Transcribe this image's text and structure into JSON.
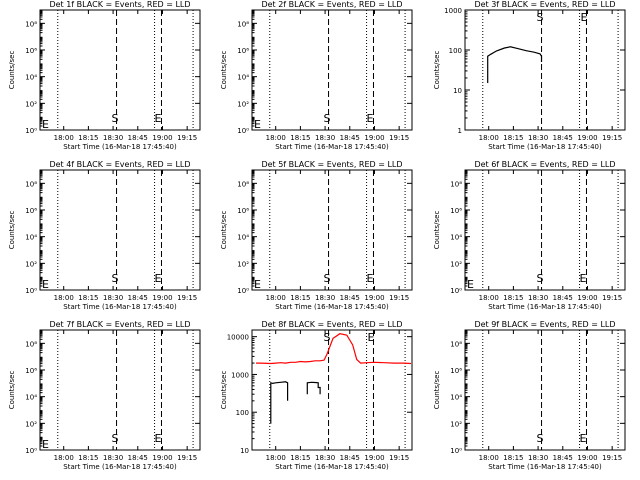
{
  "chart_data": [
    {
      "id": "det1f",
      "type": "line",
      "title": "Det 1f BLACK = Events, RED = LLD",
      "xlabel": "Start Time (16-Mar-18 17:45:40)",
      "ylabel": "Counts/sec",
      "y_scale": "log",
      "ylim": [
        1,
        1000000000.0
      ],
      "y_ticks": [
        {
          "v": 1,
          "label": "10⁰"
        },
        {
          "v": 100,
          "label": "10²"
        },
        {
          "v": 10000.0,
          "label": "10⁴"
        },
        {
          "v": 1000000.0,
          "label": "10⁶"
        },
        {
          "v": 100000000.0,
          "label": "10⁸"
        }
      ],
      "x_ticks": [
        "18:00",
        "18:15",
        "18:30",
        "18:45",
        "19:00",
        "19:15"
      ],
      "markers": [
        {
          "label": "E",
          "pos": "left"
        },
        {
          "label": "S",
          "pos": "mid"
        },
        {
          "label": "E",
          "pos": "right"
        }
      ],
      "series": []
    },
    {
      "id": "det2f",
      "type": "line",
      "title": "Det 2f BLACK = Events, RED = LLD",
      "xlabel": "Start Time (16-Mar-18 17:45:40)",
      "ylabel": "Counts/sec",
      "y_scale": "log",
      "ylim": [
        1,
        1000000000.0
      ],
      "y_ticks": [
        {
          "v": 1,
          "label": "10⁰"
        },
        {
          "v": 100,
          "label": "10²"
        },
        {
          "v": 10000.0,
          "label": "10⁴"
        },
        {
          "v": 1000000.0,
          "label": "10⁶"
        },
        {
          "v": 100000000.0,
          "label": "10⁸"
        }
      ],
      "x_ticks": [
        "18:00",
        "18:15",
        "18:30",
        "18:45",
        "19:00",
        "19:15"
      ],
      "markers": [
        {
          "label": "E",
          "pos": "left"
        },
        {
          "label": "S",
          "pos": "mid"
        },
        {
          "label": "E",
          "pos": "right"
        }
      ],
      "series": []
    },
    {
      "id": "det3f",
      "type": "line",
      "title": "Det 3f BLACK = Events, RED = LLD",
      "xlabel": "Start Time (16-Mar-18 17:45:40)",
      "ylabel": "Counts/sec",
      "y_scale": "log",
      "ylim": [
        1,
        1000
      ],
      "y_ticks": [
        {
          "v": 1,
          "label": "1"
        },
        {
          "v": 10,
          "label": "10"
        },
        {
          "v": 100,
          "label": "100"
        },
        {
          "v": 1000,
          "label": "1000"
        }
      ],
      "x_ticks": [
        "18:00",
        "18:15",
        "18:30",
        "18:45",
        "19:00",
        "19:15"
      ],
      "markers": [
        {
          "label": "S",
          "pos": "top-mid"
        },
        {
          "label": "E",
          "pos": "top-right"
        }
      ],
      "series": [
        {
          "color": "#000000",
          "points": [
            [
              17.99,
              15
            ],
            [
              17.99,
              70
            ],
            [
              18.02,
              78
            ],
            [
              18.08,
              95
            ],
            [
              18.16,
              112
            ],
            [
              18.22,
              120
            ],
            [
              18.3,
              108
            ],
            [
              18.38,
              96
            ],
            [
              18.46,
              88
            ],
            [
              18.52,
              80
            ],
            [
              18.535,
              70
            ],
            [
              18.535,
              50
            ]
          ]
        }
      ]
    },
    {
      "id": "det4f",
      "type": "line",
      "title": "Det 4f BLACK = Events, RED = LLD",
      "xlabel": "Start Time (16-Mar-18 17:45:40)",
      "ylabel": "Counts/sec",
      "y_scale": "log",
      "ylim": [
        1,
        1000000000.0
      ],
      "y_ticks": [
        {
          "v": 1,
          "label": "10⁰"
        },
        {
          "v": 100,
          "label": "10²"
        },
        {
          "v": 10000.0,
          "label": "10⁴"
        },
        {
          "v": 1000000.0,
          "label": "10⁶"
        },
        {
          "v": 100000000.0,
          "label": "10⁸"
        }
      ],
      "x_ticks": [
        "18:00",
        "18:15",
        "18:30",
        "18:45",
        "19:00",
        "19:15"
      ],
      "markers": [
        {
          "label": "E",
          "pos": "left"
        },
        {
          "label": "S",
          "pos": "mid"
        },
        {
          "label": "E",
          "pos": "right"
        }
      ],
      "series": []
    },
    {
      "id": "det5f",
      "type": "line",
      "title": "Det 5f BLACK = Events, RED = LLD",
      "xlabel": "Start Time (16-Mar-18 17:45:40)",
      "ylabel": "Counts/sec",
      "y_scale": "log",
      "ylim": [
        1,
        1000000000.0
      ],
      "y_ticks": [
        {
          "v": 1,
          "label": "10⁰"
        },
        {
          "v": 100,
          "label": "10²"
        },
        {
          "v": 10000.0,
          "label": "10⁴"
        },
        {
          "v": 1000000.0,
          "label": "10⁶"
        },
        {
          "v": 100000000.0,
          "label": "10⁸"
        }
      ],
      "x_ticks": [
        "18:00",
        "18:15",
        "18:30",
        "18:45",
        "19:00",
        "19:15"
      ],
      "markers": [
        {
          "label": "E",
          "pos": "left"
        },
        {
          "label": "S",
          "pos": "mid"
        },
        {
          "label": "E",
          "pos": "right"
        }
      ],
      "series": []
    },
    {
      "id": "det6f",
      "type": "line",
      "title": "Det 6f BLACK = Events, RED = LLD",
      "xlabel": "Start Time (16-Mar-18 17:45:40)",
      "ylabel": "Counts/sec",
      "y_scale": "log",
      "ylim": [
        1,
        1000000000.0
      ],
      "y_ticks": [
        {
          "v": 1,
          "label": "10⁰"
        },
        {
          "v": 100,
          "label": "10²"
        },
        {
          "v": 10000.0,
          "label": "10⁴"
        },
        {
          "v": 1000000.0,
          "label": "10⁶"
        },
        {
          "v": 100000000.0,
          "label": "10⁸"
        }
      ],
      "x_ticks": [
        "18:00",
        "18:15",
        "18:30",
        "18:45",
        "19:00",
        "19:15"
      ],
      "markers": [
        {
          "label": "E",
          "pos": "left"
        },
        {
          "label": "S",
          "pos": "mid"
        },
        {
          "label": "E",
          "pos": "right"
        }
      ],
      "series": []
    },
    {
      "id": "det7f",
      "type": "line",
      "title": "Det 7f BLACK = Events, RED = LLD",
      "xlabel": "Start Time (16-Mar-18 17:45:40)",
      "ylabel": "Counts/sec",
      "y_scale": "log",
      "ylim": [
        1,
        1000000000.0
      ],
      "y_ticks": [
        {
          "v": 1,
          "label": "10⁰"
        },
        {
          "v": 100,
          "label": "10²"
        },
        {
          "v": 10000.0,
          "label": "10⁴"
        },
        {
          "v": 1000000.0,
          "label": "10⁶"
        },
        {
          "v": 100000000.0,
          "label": "10⁸"
        }
      ],
      "x_ticks": [
        "18:00",
        "18:15",
        "18:30",
        "18:45",
        "19:00",
        "19:15"
      ],
      "markers": [
        {
          "label": "E",
          "pos": "left"
        },
        {
          "label": "S",
          "pos": "mid"
        },
        {
          "label": "E",
          "pos": "right"
        }
      ],
      "series": []
    },
    {
      "id": "det8f",
      "type": "line",
      "title": "Det 8f BLACK = Events, RED = LLD",
      "xlabel": "Start Time (16-Mar-18 17:45:40)",
      "ylabel": "Counts/sec",
      "y_scale": "log",
      "ylim": [
        10,
        15000
      ],
      "y_ticks": [
        {
          "v": 10,
          "label": "10"
        },
        {
          "v": 100,
          "label": "100"
        },
        {
          "v": 1000,
          "label": "1000"
        },
        {
          "v": 10000,
          "label": "10000"
        }
      ],
      "x_ticks": [
        "18:00",
        "18:15",
        "18:30",
        "18:45",
        "19:00",
        "19:15"
      ],
      "markers": [
        {
          "label": "S",
          "pos": "top-mid"
        },
        {
          "label": "E",
          "pos": "top-right"
        }
      ],
      "series": [
        {
          "color": "#ff0000",
          "points": [
            [
              17.8,
              2000
            ],
            [
              17.85,
              2000
            ],
            [
              17.95,
              1950
            ],
            [
              18.0,
              2000
            ],
            [
              18.05,
              2050
            ],
            [
              18.1,
              2000
            ],
            [
              18.15,
              2100
            ],
            [
              18.2,
              2100
            ],
            [
              18.25,
              2200
            ],
            [
              18.3,
              2150
            ],
            [
              18.35,
              2200
            ],
            [
              18.4,
              2300
            ],
            [
              18.45,
              2300
            ],
            [
              18.49,
              2400
            ],
            [
              18.52,
              3500
            ],
            [
              18.58,
              9000
            ],
            [
              18.65,
              12000
            ],
            [
              18.72,
              11000
            ],
            [
              18.78,
              6000
            ],
            [
              18.82,
              2500
            ],
            [
              18.86,
              2000
            ],
            [
              18.92,
              2050
            ],
            [
              19.0,
              2100
            ],
            [
              19.1,
              2050
            ],
            [
              19.2,
              2000
            ],
            [
              19.3,
              2000
            ],
            [
              19.37,
              1950
            ]
          ]
        },
        {
          "color": "#000000",
          "points": [
            [
              17.95,
              50
            ],
            [
              17.95,
              600
            ],
            [
              17.97,
              580
            ],
            [
              18.0,
              600
            ],
            [
              18.05,
              620
            ],
            [
              18.1,
              640
            ],
            [
              18.12,
              600
            ],
            [
              18.12,
              200
            ]
          ]
        },
        {
          "color": "#000000",
          "points": [
            [
              18.32,
              300
            ],
            [
              18.32,
              600
            ],
            [
              18.36,
              620
            ],
            [
              18.4,
              610
            ],
            [
              18.43,
              600
            ],
            [
              18.43,
              450
            ],
            [
              18.45,
              450
            ],
            [
              18.45,
              300
            ]
          ]
        }
      ]
    },
    {
      "id": "det9f",
      "type": "line",
      "title": "Det 9f BLACK = Events, RED = LLD",
      "xlabel": "Start Time (16-Mar-18 17:45:40)",
      "ylabel": "Counts/sec",
      "y_scale": "log",
      "ylim": [
        1,
        1000000000.0
      ],
      "y_ticks": [
        {
          "v": 1,
          "label": "10⁰"
        },
        {
          "v": 100,
          "label": "10²"
        },
        {
          "v": 10000.0,
          "label": "10⁴"
        },
        {
          "v": 1000000.0,
          "label": "10⁶"
        },
        {
          "v": 100000000.0,
          "label": "10⁸"
        }
      ],
      "x_ticks": [
        "18:00",
        "18:15",
        "18:30",
        "18:45",
        "19:00",
        "19:15"
      ],
      "markers": [
        {
          "label": "S",
          "pos": "mid"
        },
        {
          "label": "E",
          "pos": "right"
        }
      ],
      "series": []
    }
  ]
}
